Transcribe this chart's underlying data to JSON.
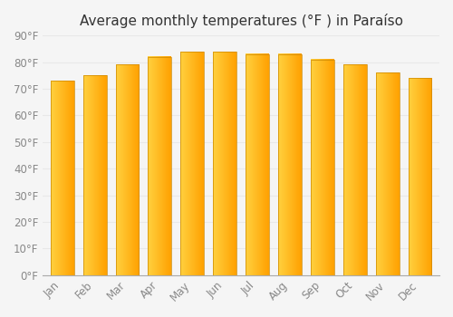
{
  "title": "Average monthly temperatures (°F ) in Paraíso",
  "months": [
    "Jan",
    "Feb",
    "Mar",
    "Apr",
    "May",
    "Jun",
    "Jul",
    "Aug",
    "Sep",
    "Oct",
    "Nov",
    "Dec"
  ],
  "values": [
    73,
    75,
    79,
    82,
    84,
    84,
    83,
    83,
    81,
    79,
    76,
    74
  ],
  "bar_color_left": "#FFD040",
  "bar_color_right": "#FFA000",
  "background_color": "#f5f5f5",
  "plot_bg_color": "#f5f5f5",
  "ylim": [
    0,
    90
  ],
  "yticks": [
    0,
    10,
    20,
    30,
    40,
    50,
    60,
    70,
    80,
    90
  ],
  "ytick_labels": [
    "0°F",
    "10°F",
    "20°F",
    "30°F",
    "40°F",
    "50°F",
    "60°F",
    "70°F",
    "80°F",
    "90°F"
  ],
  "grid_color": "#e8e8e8",
  "tick_color": "#888888",
  "title_fontsize": 11,
  "tick_fontsize": 8.5,
  "bar_width": 0.72
}
